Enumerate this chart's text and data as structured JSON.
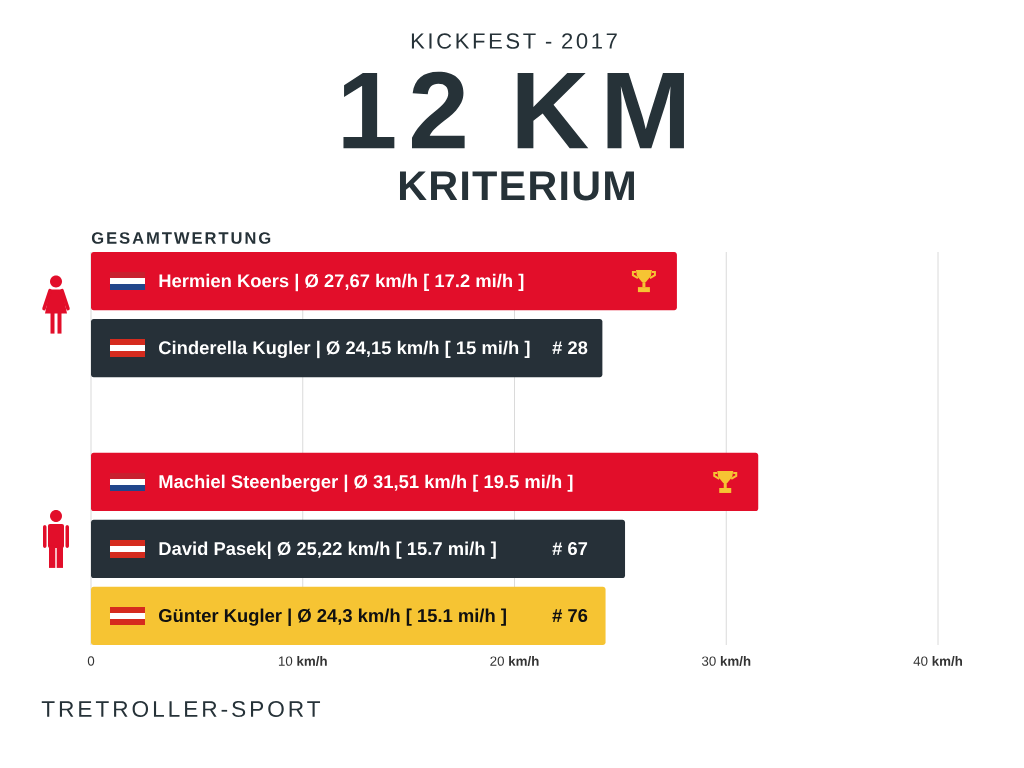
{
  "chart_data": {
    "type": "bar",
    "orientation": "horizontal",
    "title": "12 KM",
    "subtitle": "KICKFEST - 2017",
    "categories": [
      "Hermien Koers | Ø 27,67 km/h [ 17.2 mi/h ]",
      "Cinderella Kugler | Ø 24,15 km/h [ 15 mi/h ]",
      null,
      "Machiel Steenberger | Ø 31,51 km/h [ 19.5 mi/h ]",
      "David Pasek| Ø 25,22 km/h [ 15.7 mi/h ]",
      "Günter Kugler | Ø 24,3 km/h [ 15.1 mi/h ]"
    ],
    "values": [
      27.67,
      24.15,
      null,
      31.51,
      25.22,
      24.3
    ],
    "colors": [
      "#e20e2a",
      "#263038",
      null,
      "#e20e2a",
      "#263038",
      "#f6c433"
    ],
    "xlim": [
      0,
      40
    ],
    "xticks": [
      0,
      {
        "value": 10,
        "label": "10 **km/h**"
      },
      {
        "value": 20,
        "label": "20 **km/h**"
      },
      {
        "value": 30,
        "label": "30 **km/h**"
      },
      {
        "value": 40,
        "label": "40 **km/h**"
      }
    ],
    "grid": "x",
    "annotations": [
      "KRITERIUM",
      "GESAMTWERTUNG",
      "TRETROLLER-SPORT",
      {
        "text": "# 28",
        "y": "Cinderella Kugler | Ø 24,15 km/h [ 15 mi/h ]"
      },
      {
        "text": "# 67",
        "y": "David Pasek| Ø 25,22 km/h [ 15.7 mi/h ]"
      },
      {
        "text": "# 76",
        "y": "Günter Kugler | Ø 24,3 km/h [ 15.1 mi/h ]"
      }
    ]
  }
}
